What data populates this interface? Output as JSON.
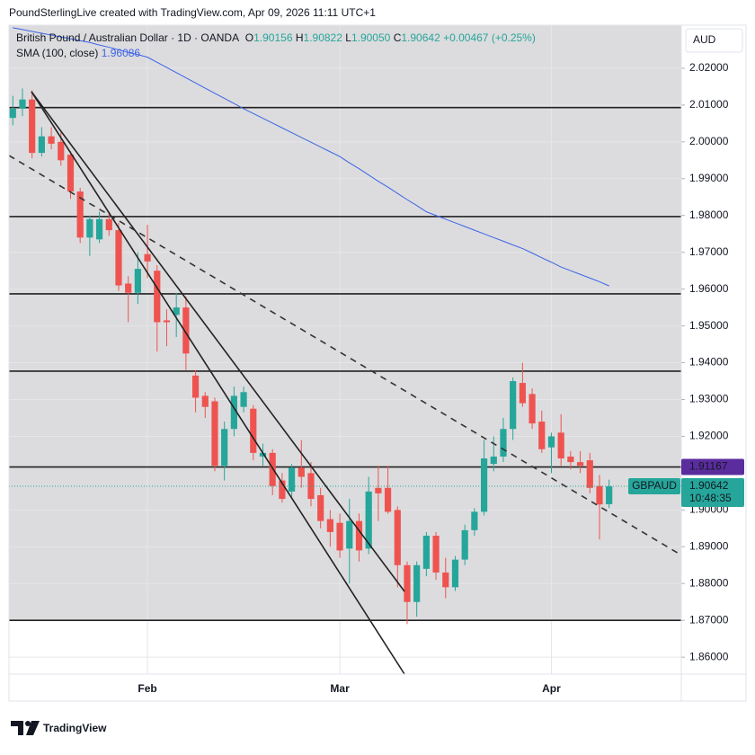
{
  "attribution": "PoundSterlingLive created with TradingView.com, Apr 09, 2026 11:11 UTC+1",
  "branding": "TradingView",
  "chart_data": {
    "type": "candlestick",
    "symbol_title": "British Pound / Australian Dollar · 1D · OANDA",
    "legend_fields": [
      {
        "key": "O",
        "value": "1.90156"
      },
      {
        "key": "H",
        "value": "1.90822"
      },
      {
        "key": "L",
        "value": "1.90050"
      },
      {
        "key": "C",
        "value": "1.90642"
      }
    ],
    "change": "+0.00467 (+0.25%)",
    "currency": "AUD",
    "ticker": "GBPAUD",
    "countdown": "10:48:35",
    "up_color": "#26a69a",
    "down_color": "#ef5350",
    "categories": [
      null,
      null,
      null,
      null,
      null,
      null,
      null,
      null,
      null,
      null,
      null,
      null,
      null,
      null,
      "Feb",
      null,
      null,
      null,
      null,
      null,
      null,
      null,
      null,
      null,
      null,
      null,
      null,
      null,
      null,
      null,
      null,
      null,
      null,
      null,
      "Mar",
      null,
      null,
      null,
      null,
      null,
      null,
      null,
      null,
      null,
      null,
      null,
      null,
      null,
      null,
      null,
      null,
      null,
      null,
      null,
      null,
      null,
      "Apr",
      null,
      null,
      null,
      null,
      null,
      null
    ],
    "open": [
      2.0065,
      2.009,
      2.0115,
      1.997,
      2.0015,
      2.0,
      1.9965,
      1.9865,
      1.974,
      1.9735,
      1.979,
      1.976,
      1.9615,
      1.959,
      1.9695,
      1.965,
      1.9515,
      1.953,
      1.955,
      1.9365,
      1.931,
      1.9295,
      1.912,
      1.922,
      1.928,
      1.9275,
      1.9145,
      1.9155,
      1.908,
      1.905,
      1.9115,
      1.91,
      1.904,
      1.8975,
      1.8965,
      1.8895,
      1.897,
      1.8895,
      1.906,
      1.906,
      1.9,
      1.885,
      1.875,
      1.884,
      1.893,
      1.883,
      1.879,
      1.8865,
      1.8945,
      1.8995,
      1.9125,
      1.9145,
      1.922,
      1.9345,
      1.9315,
      1.924,
      1.917,
      1.921,
      1.9145,
      1.913,
      1.9135,
      1.9065,
      1.90156
    ],
    "high": [
      2.0125,
      2.0145,
      2.014,
      2.004,
      2.004,
      2.0025,
      1.9975,
      1.9875,
      1.98,
      1.981,
      1.981,
      1.978,
      1.9635,
      1.97,
      1.9775,
      1.9665,
      1.9545,
      1.959,
      1.958,
      1.938,
      1.932,
      1.9305,
      1.924,
      1.9335,
      1.9335,
      1.9285,
      1.918,
      1.9165,
      1.91,
      1.9125,
      1.919,
      1.913,
      1.906,
      1.9,
      1.899,
      1.903,
      1.899,
      1.909,
      1.912,
      1.912,
      1.901,
      1.886,
      1.886,
      1.894,
      1.894,
      1.887,
      1.8875,
      1.896,
      1.9005,
      1.919,
      1.92,
      1.925,
      1.936,
      1.94,
      1.933,
      1.927,
      1.921,
      1.926,
      1.916,
      1.916,
      1.9155,
      1.9095,
      1.90822
    ],
    "low": [
      2.0045,
      2.007,
      1.9955,
      1.996,
      1.998,
      1.9935,
      1.9845,
      1.9725,
      1.969,
      1.9725,
      1.9745,
      1.9595,
      1.951,
      1.956,
      1.963,
      1.943,
      1.9445,
      1.947,
      1.938,
      1.9265,
      1.925,
      1.9105,
      1.908,
      1.92,
      1.9265,
      1.9135,
      1.912,
      1.904,
      1.902,
      1.9035,
      1.906,
      1.901,
      1.895,
      1.89,
      1.887,
      1.88,
      1.886,
      1.888,
      1.897,
      1.899,
      1.879,
      1.869,
      1.871,
      1.882,
      1.881,
      1.876,
      1.878,
      1.885,
      1.893,
      1.8985,
      1.9105,
      1.913,
      1.919,
      1.928,
      1.922,
      1.9155,
      1.91,
      1.912,
      1.911,
      1.91,
      1.9045,
      1.892,
      1.9005
    ],
    "close": [
      2.009,
      2.0115,
      1.997,
      2.0015,
      1.9995,
      1.995,
      1.9865,
      1.974,
      1.979,
      1.979,
      1.976,
      1.961,
      1.959,
      1.9655,
      1.9675,
      1.951,
      1.951,
      1.955,
      1.9425,
      1.9305,
      1.928,
      1.912,
      1.922,
      1.931,
      1.932,
      1.9155,
      1.9155,
      1.9065,
      1.903,
      1.9115,
      1.909,
      1.903,
      1.897,
      1.894,
      1.889,
      1.897,
      1.889,
      1.905,
      1.9045,
      1.8995,
      1.885,
      1.875,
      1.885,
      1.893,
      1.883,
      1.879,
      1.8865,
      1.8945,
      1.8995,
      1.914,
      1.9145,
      1.922,
      1.935,
      1.929,
      1.9235,
      1.9165,
      1.92,
      1.914,
      1.913,
      1.912,
      1.906,
      1.9015,
      1.90642
    ],
    "series": [
      {
        "name": "SMA (100, close)",
        "color": "#3b63e8",
        "values": [
          2.031,
          2.0305,
          2.03,
          2.0295,
          2.029,
          2.0285,
          2.028,
          2.0275,
          2.027,
          2.0263,
          2.0257,
          2.025,
          2.0243,
          2.0237,
          2.023,
          2.0216,
          2.0202,
          2.0188,
          2.0174,
          2.016,
          2.0146,
          2.0132,
          2.0118,
          2.0104,
          2.009,
          2.0077,
          2.0064,
          2.0051,
          2.0038,
          2.0025,
          2.0012,
          1.9999,
          1.9986,
          1.9973,
          1.996,
          1.9943,
          1.9927,
          1.991,
          1.9893,
          1.9877,
          1.986,
          1.9843,
          1.9827,
          1.981,
          1.98,
          1.979,
          1.978,
          1.977,
          1.976,
          1.975,
          1.974,
          1.973,
          1.972,
          1.971,
          1.9698,
          1.9685,
          1.9673,
          1.966,
          1.965,
          1.964,
          1.963,
          1.962,
          1.96086
        ]
      }
    ],
    "levels": [
      2.0093,
      1.9797,
      1.9587,
      1.9377,
      1.87
    ],
    "marked_level": 1.91167,
    "marked_level_color": "#5b2c9e",
    "ylim": [
      1.8554,
      2.0317
    ],
    "yticks": [
      {
        "value": 1.86,
        "label": "1.86000"
      },
      {
        "value": 1.87,
        "label": "1.87000"
      },
      {
        "value": 1.88,
        "label": "1.88000"
      },
      {
        "value": 1.89,
        "label": "1.89000"
      },
      {
        "value": 1.9,
        "label": "1.90000"
      },
      {
        "value": 1.92,
        "label": "1.92000"
      },
      {
        "value": 1.93,
        "label": "1.93000"
      },
      {
        "value": 1.94,
        "label": "1.94000"
      },
      {
        "value": 1.95,
        "label": "1.95000"
      },
      {
        "value": 1.96,
        "label": "1.96000"
      },
      {
        "value": 1.97,
        "label": "1.97000"
      },
      {
        "value": 1.98,
        "label": "1.98000"
      },
      {
        "value": 1.99,
        "label": "1.99000"
      },
      {
        "value": 2.0,
        "label": "2.00000"
      },
      {
        "value": 2.01,
        "label": "2.01000"
      },
      {
        "value": 2.02,
        "label": "2.02000"
      }
    ],
    "grid": true
  }
}
